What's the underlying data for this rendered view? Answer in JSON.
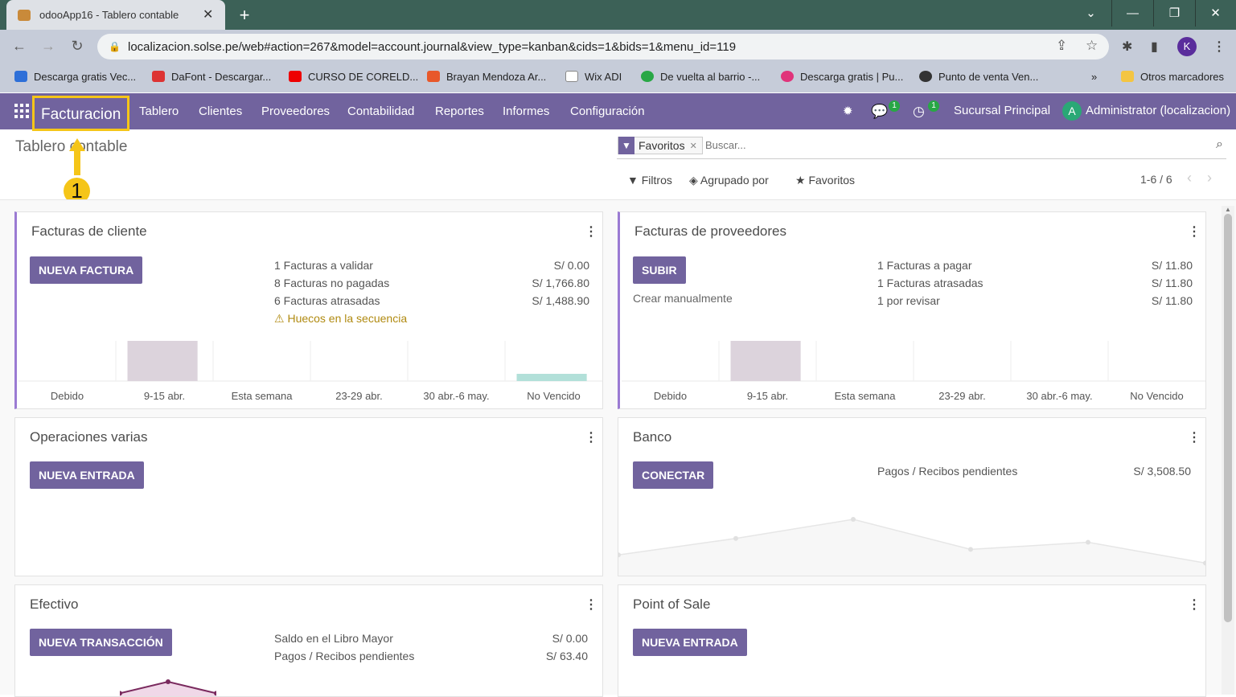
{
  "browser": {
    "tab_title": "odooApp16 - Tablero contable",
    "url": "localizacion.solse.pe/web#action=267&model=account.journal&view_type=kanban&cids=1&bids=1&menu_id=119",
    "profile_initial": "K",
    "bookmarks": [
      "Descarga gratis Vec...",
      "DaFont - Descargar...",
      "CURSO DE CORELD...",
      "Brayan Mendoza Ar...",
      "Wix ADI",
      "De vuelta al barrio -...",
      "Descarga gratis | Pu...",
      "Punto de venta Ven..."
    ],
    "bookmarks_overflow": "»",
    "other_bookmarks": "Otros marcadores"
  },
  "navbar": {
    "brand": "Facturacion",
    "menu": [
      "Tablero",
      "Clientes",
      "Proveedores",
      "Contabilidad",
      "Reportes",
      "Informes",
      "Configuración"
    ],
    "messages_badge": "1",
    "activity_badge": "1",
    "company": "Sucursal Principal",
    "user_initial": "A",
    "user": "Administrator (localizacion)"
  },
  "control_panel": {
    "breadcrumb": "Tablero contable",
    "annotation_number": "1",
    "facet_label": "Favoritos",
    "search_placeholder": "Buscar...",
    "filters": "Filtros",
    "group_by": "Agrupado por",
    "favorites": "Favoritos",
    "pager": "1-6 / 6"
  },
  "cards": {
    "customer_invoices": {
      "title": "Facturas de cliente",
      "button": "NUEVA FACTURA",
      "stats": [
        {
          "label": "1 Facturas a validar",
          "value": "S/ 0.00"
        },
        {
          "label": "8 Facturas no pagadas",
          "value": "S/ 1,766.80"
        },
        {
          "label": "6 Facturas atrasadas",
          "value": "S/ 1,488.90"
        }
      ],
      "warning": "Huecos en la secuencia"
    },
    "vendor_bills": {
      "title": "Facturas de proveedores",
      "button": "SUBIR",
      "secondary": "Crear manualmente",
      "stats": [
        {
          "label": "1 Facturas a pagar",
          "value": "S/ 11.80"
        },
        {
          "label": "1 Facturas atrasadas",
          "value": "S/ 11.80"
        },
        {
          "label": "1 por revisar",
          "value": "S/ 11.80"
        }
      ]
    },
    "misc": {
      "title": "Operaciones varias",
      "button": "NUEVA ENTRADA"
    },
    "bank": {
      "title": "Banco",
      "button": "CONECTAR",
      "stats": [
        {
          "label": "Pagos / Recibos pendientes",
          "value": "S/ 3,508.50"
        }
      ]
    },
    "cash": {
      "title": "Efectivo",
      "button": "NUEVA TRANSACCIÓN",
      "stats": [
        {
          "label": "Saldo en el Libro Mayor",
          "value": "S/ 0.00"
        },
        {
          "label": "Pagos / Recibos pendientes",
          "value": "S/ 63.40"
        }
      ]
    },
    "pos": {
      "title": "Point of Sale",
      "button": "NUEVA ENTRADA"
    }
  },
  "chart_data": [
    {
      "type": "bar",
      "categories": [
        "Debido",
        "9-15 abr.",
        "Esta semana",
        "23-29 abr.",
        "30 abr.-6 may.",
        "No Vencido"
      ],
      "series": [
        {
          "values": [
            0,
            1.0,
            0,
            0,
            0,
            0.18
          ]
        }
      ],
      "colors": [
        "#dcd3dc",
        "#b2e0d9"
      ]
    },
    {
      "type": "bar",
      "categories": [
        "Debido",
        "9-15 abr.",
        "Esta semana",
        "23-29 abr.",
        "30 abr.-6 may.",
        "No Vencido"
      ],
      "series": [
        {
          "values": [
            0,
            1.0,
            0,
            0,
            0,
            0
          ]
        }
      ],
      "colors": [
        "#dcd3dc"
      ]
    },
    {
      "type": "line",
      "x": [
        0,
        1,
        2,
        3,
        4,
        5
      ],
      "series": [
        {
          "values": [
            0.35,
            0.65,
            1.0,
            0.45,
            0.58,
            0.2
          ]
        }
      ],
      "colors": [
        "#e6e6e6"
      ]
    },
    {
      "type": "line",
      "x": [
        0,
        1,
        2
      ],
      "series": [
        {
          "values": [
            0.1,
            1.0,
            0.1
          ]
        }
      ],
      "colors": [
        "#f0d8e8",
        "#7a2a5e"
      ]
    }
  ]
}
